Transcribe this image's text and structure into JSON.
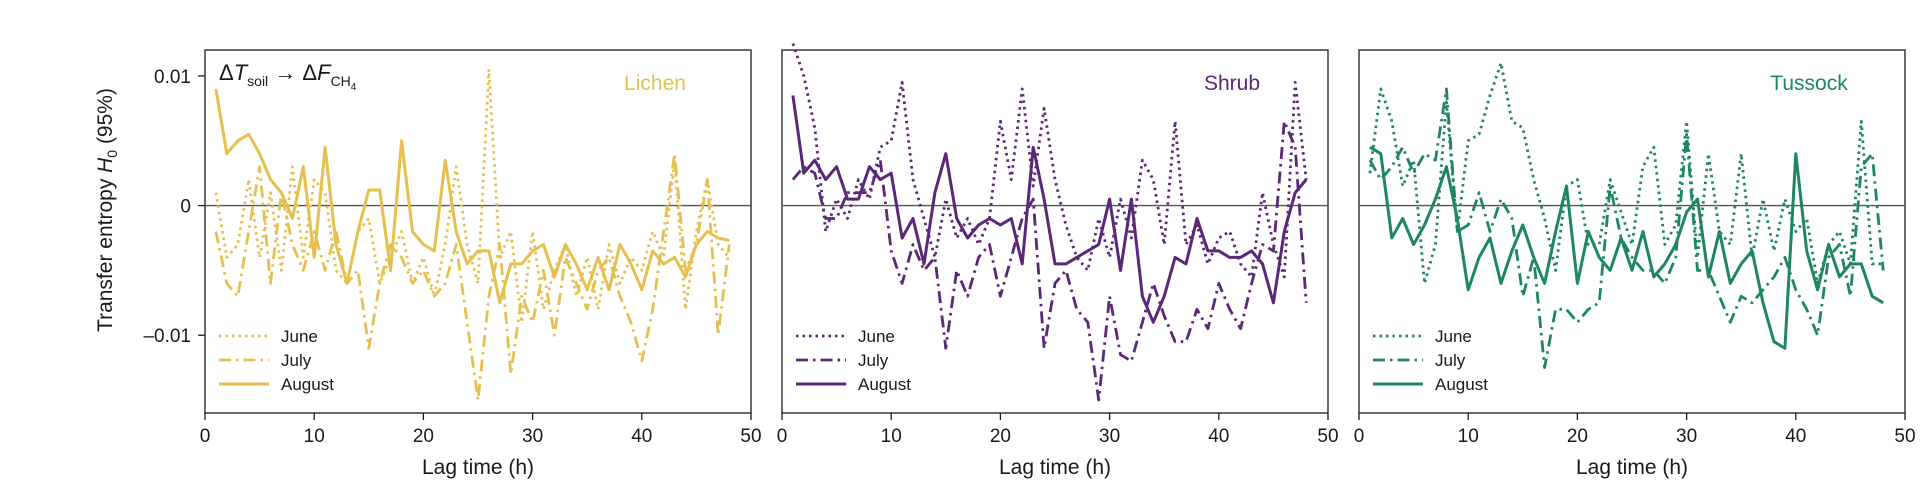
{
  "figure": {
    "ylabel_main": "Transfer entropy ",
    "ylabel_var": "H",
    "ylabel_sub": "0",
    "ylabel_tail": " (95%)",
    "xlabel": "Lag time (h)",
    "annotation": {
      "delta1": "Δ",
      "var1": "T",
      "sub1": "soil",
      "arrow": " → ",
      "delta2": "Δ",
      "var2": "F",
      "sub2": "CH",
      "sub2_index": "4"
    },
    "legend_labels": [
      "June",
      "July",
      "August"
    ]
  },
  "chart_data": [
    {
      "type": "line",
      "title": "Lichen",
      "color": "#e6c04e",
      "xlabel": "Lag time (h)",
      "ylabel": "Transfer entropy H0 (95%)",
      "xlim": [
        0,
        50
      ],
      "ylim": [
        -0.016,
        0.012
      ],
      "xticks": [
        0,
        10,
        20,
        30,
        40,
        50
      ],
      "xtick_labels": [
        "0",
        "10",
        "20",
        "30",
        "40",
        "50"
      ],
      "yticks": [
        0.01,
        0,
        -0.01
      ],
      "ytick_labels": [
        "0.01",
        "0",
        "–0.01"
      ],
      "reference_line": 0,
      "legend_position": "bottom-left",
      "series": [
        {
          "name": "June",
          "style": "dotted",
          "x": [
            1,
            2,
            3,
            4,
            5,
            6,
            7,
            8,
            9,
            10,
            11,
            12,
            13,
            14,
            15,
            16,
            17,
            18,
            19,
            20,
            21,
            22,
            23,
            24,
            25,
            26,
            27,
            28,
            29,
            30,
            31,
            32,
            33,
            34,
            35,
            36,
            37,
            38,
            39,
            40,
            41,
            42,
            43,
            44,
            45,
            46,
            47,
            48
          ],
          "values": [
            0.001,
            -0.004,
            -0.003,
            0.002,
            -0.004,
            0.001,
            -0.005,
            0.003,
            -0.004,
            0.002,
            0.001,
            -0.005,
            -0.006,
            -0.002,
            -0.001,
            -0.006,
            -0.004,
            -0.002,
            -0.006,
            -0.004,
            -0.007,
            -0.003,
            0.003,
            -0.003,
            -0.006,
            0.0105,
            -0.004,
            -0.002,
            -0.009,
            -0.002,
            -0.008,
            -0.005,
            -0.003,
            -0.007,
            -0.004,
            -0.008,
            -0.003,
            -0.006,
            -0.004,
            -0.005,
            -0.002,
            -0.004,
            0.0035,
            -0.008,
            -0.002,
            0.002,
            -0.003,
            -0.004
          ]
        },
        {
          "name": "July",
          "style": "dashdot",
          "x": [
            1,
            2,
            3,
            4,
            5,
            6,
            7,
            8,
            9,
            10,
            11,
            12,
            13,
            14,
            15,
            16,
            17,
            18,
            19,
            20,
            21,
            22,
            23,
            24,
            25,
            26,
            27,
            28,
            29,
            30,
            31,
            32,
            33,
            34,
            35,
            36,
            37,
            38,
            39,
            40,
            41,
            42,
            43,
            44,
            45,
            46,
            47,
            48
          ],
          "values": [
            -0.002,
            -0.006,
            -0.007,
            -0.002,
            0.003,
            -0.006,
            0.001,
            -0.003,
            -0.005,
            -0.002,
            -0.005,
            -0.002,
            -0.006,
            -0.005,
            -0.011,
            -0.006,
            -0.003,
            -0.004,
            -0.006,
            -0.005,
            -0.007,
            -0.006,
            -0.003,
            -0.009,
            -0.015,
            -0.007,
            -0.003,
            -0.013,
            -0.007,
            -0.009,
            -0.005,
            -0.01,
            -0.004,
            -0.006,
            -0.008,
            -0.005,
            -0.004,
            -0.007,
            -0.009,
            -0.012,
            -0.008,
            -0.002,
            0.004,
            -0.005,
            -0.003,
            0.002,
            -0.01,
            -0.003
          ]
        },
        {
          "name": "August",
          "style": "solid",
          "x": [
            1,
            2,
            3,
            4,
            5,
            6,
            7,
            8,
            9,
            10,
            11,
            12,
            13,
            14,
            15,
            16,
            17,
            18,
            19,
            20,
            21,
            22,
            23,
            24,
            25,
            26,
            27,
            28,
            29,
            30,
            31,
            32,
            33,
            34,
            35,
            36,
            37,
            38,
            39,
            40,
            41,
            42,
            43,
            44,
            45,
            46,
            47,
            48
          ],
          "values": [
            0.009,
            0.004,
            0.005,
            0.0055,
            0.004,
            0.002,
            0.001,
            -0.001,
            0.003,
            -0.004,
            0.0045,
            -0.003,
            -0.006,
            -0.002,
            0.0012,
            0.0012,
            -0.005,
            0.005,
            -0.002,
            -0.003,
            -0.0035,
            0.0035,
            -0.002,
            -0.0045,
            -0.0035,
            -0.0035,
            -0.0075,
            -0.0045,
            -0.0045,
            -0.0035,
            -0.003,
            -0.0055,
            -0.003,
            -0.0045,
            -0.0065,
            -0.004,
            -0.0065,
            -0.003,
            -0.0045,
            -0.0065,
            -0.0035,
            -0.0045,
            -0.004,
            -0.0055,
            -0.003,
            -0.002,
            -0.0025,
            -0.0027
          ]
        }
      ]
    },
    {
      "type": "line",
      "title": "Shrub",
      "color": "#5b2776",
      "xlabel": "Lag time (h)",
      "xlim": [
        0,
        50
      ],
      "ylim": [
        -0.016,
        0.012
      ],
      "xticks": [
        0,
        10,
        20,
        30,
        40,
        50
      ],
      "xtick_labels": [
        "0",
        "10",
        "20",
        "30",
        "40",
        "50"
      ],
      "reference_line": 0,
      "legend_position": "bottom-left",
      "series": [
        {
          "name": "June",
          "style": "dotted",
          "x": [
            1,
            2,
            3,
            4,
            5,
            6,
            7,
            8,
            9,
            10,
            11,
            12,
            13,
            14,
            15,
            16,
            17,
            18,
            19,
            20,
            21,
            22,
            23,
            24,
            25,
            26,
            27,
            28,
            29,
            30,
            31,
            32,
            33,
            34,
            35,
            36,
            37,
            38,
            39,
            40,
            41,
            42,
            43,
            44,
            45,
            46,
            47,
            48
          ],
          "values": [
            0.0125,
            0.01,
            0.006,
            -0.002,
            0.0005,
            -0.001,
            0.002,
            0.0005,
            0.0045,
            0.005,
            0.0095,
            0.002,
            -0.001,
            -0.004,
            0.0005,
            -0.0025,
            -0.001,
            -0.003,
            -0.001,
            0.0065,
            0.002,
            0.009,
            0.0015,
            0.0075,
            0.002,
            -0.0015,
            -0.004,
            -0.005,
            -0.001,
            -0.004,
            0.0005,
            -0.0025,
            0.0035,
            0.002,
            -0.003,
            0.0065,
            -0.003,
            -0.0015,
            -0.0045,
            -0.0025,
            -0.002,
            -0.0045,
            -0.0055,
            0.001,
            -0.003,
            -0.0055,
            0.0095,
            0.002
          ]
        },
        {
          "name": "July",
          "style": "dashdot",
          "x": [
            1,
            2,
            3,
            4,
            5,
            6,
            7,
            8,
            9,
            10,
            11,
            12,
            13,
            14,
            15,
            16,
            17,
            18,
            19,
            20,
            21,
            22,
            23,
            24,
            25,
            26,
            27,
            28,
            29,
            30,
            31,
            32,
            33,
            34,
            35,
            36,
            37,
            38,
            39,
            40,
            41,
            42,
            43,
            44,
            45,
            46,
            47,
            48
          ],
          "values": [
            0.002,
            0.003,
            0.0025,
            -0.001,
            -0.001,
            0.001,
            0.001,
            0.001,
            0.0035,
            -0.0035,
            -0.006,
            -0.003,
            -0.005,
            -0.004,
            -0.011,
            -0.005,
            -0.007,
            -0.004,
            -0.003,
            -0.007,
            -0.004,
            -0.001,
            0.0005,
            -0.011,
            -0.006,
            -0.005,
            -0.008,
            -0.009,
            -0.015,
            -0.007,
            -0.0115,
            -0.012,
            -0.009,
            -0.006,
            -0.0085,
            -0.0105,
            -0.0105,
            -0.008,
            -0.0095,
            -0.006,
            -0.008,
            -0.0095,
            -0.006,
            -0.003,
            -0.0035,
            0.0065,
            0.0045,
            -0.0075
          ]
        },
        {
          "name": "August",
          "style": "solid",
          "x": [
            1,
            2,
            3,
            4,
            5,
            6,
            7,
            8,
            9,
            10,
            11,
            12,
            13,
            14,
            15,
            16,
            17,
            18,
            19,
            20,
            21,
            22,
            23,
            24,
            25,
            26,
            27,
            28,
            29,
            30,
            31,
            32,
            33,
            34,
            35,
            36,
            37,
            38,
            39,
            40,
            41,
            42,
            43,
            44,
            45,
            46,
            47,
            48
          ],
          "values": [
            0.0085,
            0.0025,
            0.0035,
            0.002,
            0.003,
            0.0005,
            0.0005,
            0.003,
            0.002,
            0.0025,
            -0.0025,
            -0.001,
            -0.0045,
            0.001,
            0.004,
            -0.001,
            -0.0025,
            -0.0015,
            -0.001,
            -0.0015,
            -0.001,
            -0.0045,
            0.0045,
            0.0005,
            -0.0045,
            -0.0045,
            -0.004,
            -0.0035,
            -0.003,
            0.0005,
            -0.005,
            0.0005,
            -0.007,
            -0.009,
            -0.007,
            -0.004,
            -0.0045,
            -0.001,
            -0.0035,
            -0.0035,
            -0.004,
            -0.004,
            -0.0035,
            -0.0045,
            -0.0075,
            -0.002,
            0.001,
            0.002
          ]
        }
      ]
    },
    {
      "type": "line",
      "title": "Tussock",
      "color": "#1e8663",
      "xlabel": "Lag time (h)",
      "xlim": [
        0,
        50
      ],
      "ylim": [
        -0.016,
        0.012
      ],
      "xticks": [
        0,
        10,
        20,
        30,
        40,
        50
      ],
      "xtick_labels": [
        "0",
        "10",
        "20",
        "30",
        "40",
        "50"
      ],
      "reference_line": 0,
      "legend_position": "bottom-left",
      "series": [
        {
          "name": "June",
          "style": "dotted",
          "x": [
            1,
            2,
            3,
            4,
            5,
            6,
            7,
            8,
            9,
            10,
            11,
            12,
            13,
            14,
            15,
            16,
            17,
            18,
            19,
            20,
            21,
            22,
            23,
            24,
            25,
            26,
            27,
            28,
            29,
            30,
            31,
            32,
            33,
            34,
            35,
            36,
            37,
            38,
            39,
            40,
            41,
            42,
            43,
            44,
            45,
            46,
            47,
            48
          ],
          "values": [
            0.0025,
            0.009,
            0.0065,
            0.0015,
            0.0035,
            -0.006,
            -0.003,
            0.008,
            -0.002,
            0.005,
            0.0055,
            0.0085,
            0.011,
            0.0065,
            0.006,
            0.002,
            -0.001,
            -0.005,
            0.0015,
            0.002,
            -0.003,
            -0.003,
            0.002,
            -0.0005,
            -0.003,
            0.003,
            0.0045,
            -0.003,
            -0.0015,
            0.0065,
            -0.004,
            0.004,
            -0.002,
            -0.003,
            0.004,
            -0.004,
            0.0005,
            -0.0035,
            0.0005,
            -0.002,
            -0.001,
            -0.006,
            -0.003,
            -0.002,
            -0.0045,
            0.0065,
            -0.0045,
            -0.0045
          ]
        },
        {
          "name": "July",
          "style": "dashdot",
          "x": [
            1,
            2,
            3,
            4,
            5,
            6,
            7,
            8,
            9,
            10,
            11,
            12,
            13,
            14,
            15,
            16,
            17,
            18,
            19,
            20,
            21,
            22,
            23,
            24,
            25,
            26,
            27,
            28,
            29,
            30,
            31,
            32,
            33,
            34,
            35,
            36,
            37,
            38,
            39,
            40,
            41,
            42,
            43,
            44,
            45,
            46,
            47,
            48
          ],
          "values": [
            0.0035,
            0.002,
            0.003,
            0.0045,
            0.0025,
            0.004,
            0.0035,
            0.009,
            -0.002,
            -0.0015,
            0.001,
            -0.002,
            0.0005,
            -0.001,
            -0.007,
            -0.004,
            -0.0125,
            -0.008,
            -0.008,
            -0.009,
            -0.008,
            -0.0075,
            0.0015,
            -0.0025,
            -0.004,
            -0.005,
            -0.005,
            -0.006,
            -0.004,
            0.0055,
            -0.005,
            -0.005,
            -0.007,
            -0.009,
            -0.007,
            -0.0075,
            -0.0065,
            -0.0055,
            -0.004,
            -0.0065,
            -0.008,
            -0.01,
            -0.004,
            -0.003,
            -0.007,
            0.003,
            0.004,
            -0.005
          ]
        },
        {
          "name": "August",
          "style": "solid",
          "x": [
            1,
            2,
            3,
            4,
            5,
            6,
            7,
            8,
            9,
            10,
            11,
            12,
            13,
            14,
            15,
            16,
            17,
            18,
            19,
            20,
            21,
            22,
            23,
            24,
            25,
            26,
            27,
            28,
            29,
            30,
            31,
            32,
            33,
            34,
            35,
            36,
            37,
            38,
            39,
            40,
            41,
            42,
            43,
            44,
            45,
            46,
            47,
            48
          ],
          "values": [
            0.0045,
            0.004,
            -0.0025,
            -0.001,
            -0.003,
            -0.0015,
            0.0005,
            0.003,
            -0.001,
            -0.0065,
            -0.004,
            -0.0025,
            -0.006,
            -0.0035,
            -0.0015,
            -0.004,
            -0.006,
            -0.002,
            0.0015,
            -0.006,
            -0.002,
            -0.004,
            -0.005,
            -0.0025,
            -0.005,
            -0.002,
            -0.0055,
            -0.0045,
            -0.003,
            -0.0005,
            0.0005,
            -0.0055,
            -0.002,
            -0.006,
            -0.0045,
            -0.0035,
            -0.0075,
            -0.0105,
            -0.011,
            0.004,
            -0.0035,
            -0.0065,
            -0.003,
            -0.0055,
            -0.0045,
            -0.0045,
            -0.007,
            -0.0075
          ]
        }
      ]
    }
  ]
}
